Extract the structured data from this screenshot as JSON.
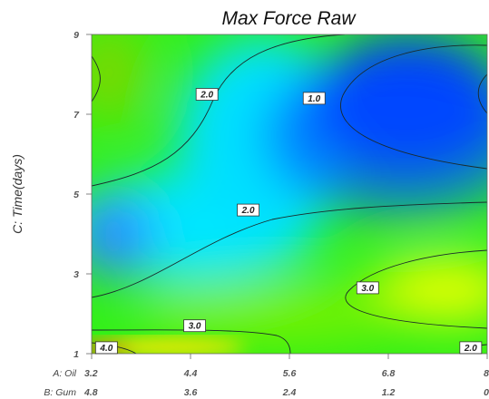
{
  "chart_data": {
    "type": "heatmap",
    "title": "Max Force Raw",
    "ylabel": "C: Time(days)",
    "y_ticks": [
      "1",
      "3",
      "5",
      "7",
      "9"
    ],
    "ylim": [
      1,
      9
    ],
    "x_axes": [
      {
        "label": "A: Oil",
        "ticks": [
          "3.2",
          "4.4",
          "5.6",
          "6.8",
          "8"
        ]
      },
      {
        "label": "B: Gum",
        "ticks": [
          "4.8",
          "3.6",
          "2.4",
          "1.2",
          "0"
        ]
      }
    ],
    "xlim": [
      3.2,
      8
    ],
    "colorscale": [
      "#0000ff",
      "#00ffff",
      "#00ff00",
      "#ffff00",
      "#ff0000"
    ],
    "contours": [
      {
        "label": "1.0",
        "x": 5.9,
        "y": 7.4
      },
      {
        "label": "2.0",
        "x": 4.6,
        "y": 7.5
      },
      {
        "label": "2.0",
        "x": 5.1,
        "y": 4.6
      },
      {
        "label": "2.0",
        "x": 7.8,
        "y": 1.15
      },
      {
        "label": "3.0",
        "x": 6.55,
        "y": 2.65
      },
      {
        "label": "3.0",
        "x": 4.45,
        "y": 1.7
      },
      {
        "label": "4.0",
        "x": 3.38,
        "y": 1.15
      }
    ]
  }
}
